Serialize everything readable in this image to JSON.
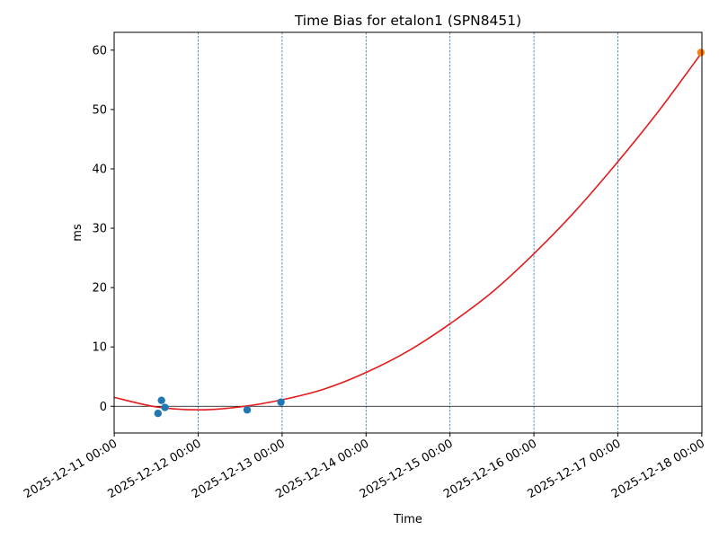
{
  "chart_data": {
    "type": "scatter",
    "title": "Time Bias for etalon1 (SPN8451)",
    "xlabel": "Time",
    "ylabel": "ms",
    "x_axis_type": "datetime",
    "xlim": [
      "2025-12-10T23:58:00",
      "2025-12-18T00:02:00"
    ],
    "ylim": [
      -4.5,
      63
    ],
    "x_ticks": [
      "2025-12-11 00:00",
      "2025-12-12 00:00",
      "2025-12-13 00:00",
      "2025-12-14 00:00",
      "2025-12-15 00:00",
      "2025-12-16 00:00",
      "2025-12-17 00:00",
      "2025-12-18 00:00"
    ],
    "y_ticks": [
      0,
      10,
      20,
      30,
      40,
      50,
      60
    ],
    "vertical_gridlines": "dashed at each day",
    "zero_line": true,
    "series": [
      {
        "kind": "points",
        "color": "#1f77b4",
        "points": [
          {
            "x": "2025-12-11T12:30:00",
            "y": -1.2
          },
          {
            "x": "2025-12-11T13:30:00",
            "y": 1.0
          },
          {
            "x": "2025-12-11T14:30:00",
            "y": -0.2
          },
          {
            "x": "2025-12-12T14:00:00",
            "y": -0.6
          },
          {
            "x": "2025-12-12T23:40:00",
            "y": 0.7
          }
        ]
      },
      {
        "kind": "points",
        "color": "#ff7f0e",
        "points": [
          {
            "x": "2025-12-17T23:45:00",
            "y": 59.6
          }
        ]
      },
      {
        "kind": "fit-curve",
        "color": "#e41a1c",
        "points": [
          {
            "x": "2025-12-11T00:00:00",
            "y": 1.5
          },
          {
            "x": "2025-12-11T12:00:00",
            "y": -0.1
          },
          {
            "x": "2025-12-12T00:00:00",
            "y": -0.6
          },
          {
            "x": "2025-12-12T12:00:00",
            "y": -0.1
          },
          {
            "x": "2025-12-13T00:00:00",
            "y": 1.1
          },
          {
            "x": "2025-12-13T12:00:00",
            "y": 2.9
          },
          {
            "x": "2025-12-14T00:00:00",
            "y": 5.7
          },
          {
            "x": "2025-12-14T12:00:00",
            "y": 9.3
          },
          {
            "x": "2025-12-15T00:00:00",
            "y": 13.9
          },
          {
            "x": "2025-12-15T12:00:00",
            "y": 19.2
          },
          {
            "x": "2025-12-16T00:00:00",
            "y": 25.7
          },
          {
            "x": "2025-12-16T12:00:00",
            "y": 33.0
          },
          {
            "x": "2025-12-17T00:00:00",
            "y": 41.2
          },
          {
            "x": "2025-12-17T12:00:00",
            "y": 50.0
          },
          {
            "x": "2025-12-18T00:00:00",
            "y": 59.6
          }
        ]
      }
    ]
  }
}
